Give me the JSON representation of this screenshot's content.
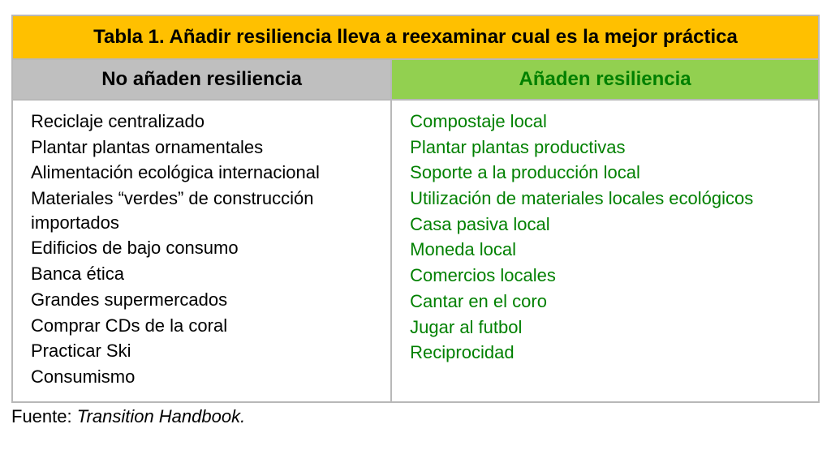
{
  "title_label": "Tabla 1",
  "title_sep": ". ",
  "title_rest": "Añadir resiliencia lleva a reexaminar cual es la mejor práctica",
  "title_bg": "#ffc000",
  "title_fontsize": 24,
  "headers": {
    "left": {
      "text": "No añaden resiliencia",
      "bg": "#bfbfbf",
      "color": "#000000"
    },
    "right": {
      "text": "Añaden resiliencia",
      "bg": "#92d050",
      "color": "#008000"
    },
    "fontsize": 24
  },
  "col_widths": [
    "47%",
    "53%"
  ],
  "body_fontsize": 22,
  "left_text_color": "#000000",
  "right_text_color": "#008000",
  "border_color": "#b8b8b8",
  "left_items": [
    "Reciclaje centralizado",
    "Plantar plantas ornamentales",
    "Alimentación ecológica internacional",
    "Materiales “verdes” de construcción importados",
    "Edificios de bajo consumo",
    "Banca ética",
    "Grandes supermercados",
    "Comprar CDs de la coral",
    "Practicar Ski",
    "Consumismo"
  ],
  "right_items": [
    "Compostaje local",
    "Plantar plantas productivas",
    "Soporte a la producción local",
    "Utilización de materiales locales ecológicos",
    "Casa pasiva local",
    "Moneda local",
    "Comercios locales",
    "Cantar en el coro",
    "Jugar al futbol",
    "Reciprocidad"
  ],
  "source_label": "Fuente: ",
  "source_value": "Transition Handbook."
}
